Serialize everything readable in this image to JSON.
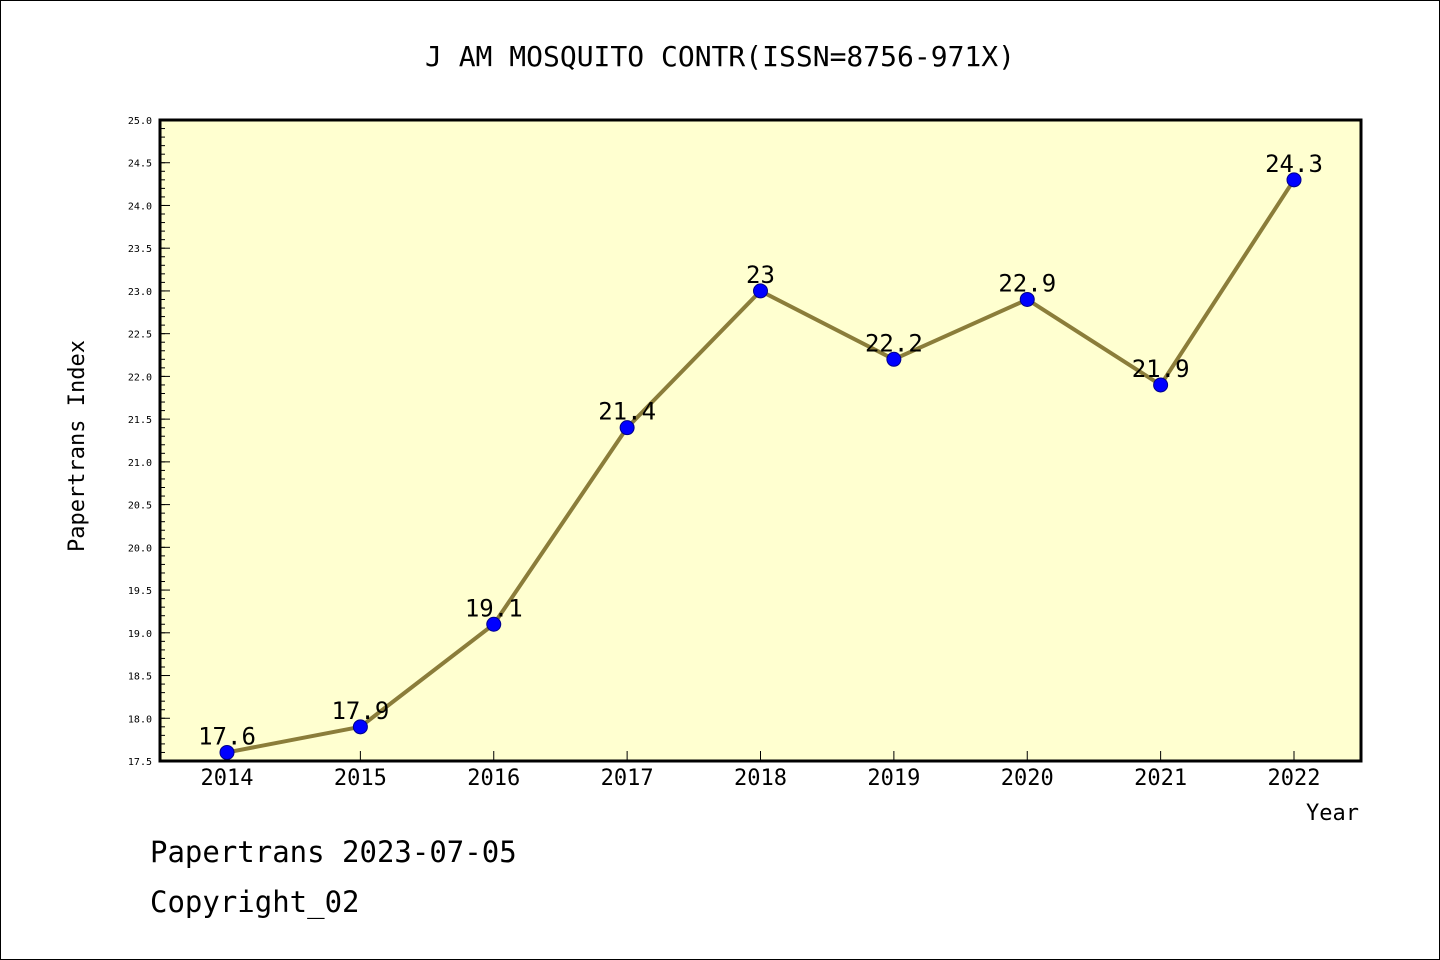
{
  "chart_data": {
    "type": "line",
    "title": "J AM MOSQUITO CONTR(ISSN=8756-971X)",
    "xlabel": "Year",
    "ylabel": "Papertrans Index",
    "categories": [
      "2014",
      "2015",
      "2016",
      "2017",
      "2018",
      "2019",
      "2020",
      "2021",
      "2022"
    ],
    "series": [
      {
        "values": [
          17.6,
          17.9,
          19.1,
          21.4,
          23,
          22.2,
          22.9,
          21.9,
          24.3
        ],
        "labels": [
          "17.6",
          "17.9",
          "19.1",
          "21.4",
          "23",
          "22.2",
          "22.9",
          "21.9",
          "24.3"
        ],
        "line_color": "#8b7d3a",
        "marker_color": "#0000ff"
      }
    ],
    "ylim": [
      17.5,
      25.0
    ],
    "yticks": [
      "17.5",
      "18.0",
      "18.5",
      "19.0",
      "19.5",
      "20.0",
      "20.5",
      "21.0",
      "21.5",
      "22.0",
      "22.5",
      "23.0",
      "23.5",
      "24.0",
      "24.5",
      "25.0"
    ],
    "grid": false,
    "plot_background": "#ffffd0"
  },
  "footer": {
    "line1": "Papertrans 2023-07-05",
    "line2": "Copyright_02"
  }
}
